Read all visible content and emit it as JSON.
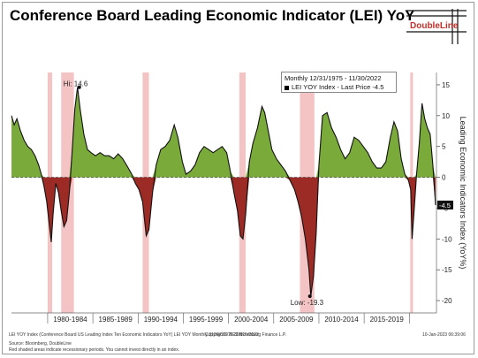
{
  "title": "Conference Board Leading Economic Indicator (LEI) YoY",
  "logo_text": "DoubleLine",
  "legend": {
    "line1": "Monthly 12/31/1975 - 11/30/2022",
    "line2": "LEI YOY Index - Last Price -4.5"
  },
  "footer": {
    "series_note": "LEI YOY Index (Conference Board US Leading Index Ten Economic Indicators YoY) LEI YOY  Monthly 31DEC1976-30NOV2022",
    "copyright": "Copyright© 2023 Bloomberg Finance L.P.",
    "date_stamp": "10-Jan-2023 06:39:06",
    "source": "Source: Bloomberg, DoubleLine",
    "disclaimer": "Red shaded areas indicate recessionary periods. You cannot invest directly in an index."
  },
  "chart_data": {
    "type": "area",
    "title": "Conference Board Leading Economic Indicator (LEI) YoY",
    "ylabel": "Leading Economic Indicators Index (YoY%)",
    "ylim": [
      -22,
      17
    ],
    "yticks": [
      15,
      10,
      5,
      0,
      -5,
      -10,
      -15,
      -20
    ],
    "ytick_labels": [
      "15",
      "10",
      "5",
      "0",
      "-5",
      "-10",
      "-15",
      "-20"
    ],
    "xlim": [
      1976.0,
      2023.0
    ],
    "x_period_labels": [
      "1980-1984",
      "1985-1989",
      "1990-1994",
      "1995-1999",
      "2000-2004",
      "2005-2009",
      "2010-2014",
      "2015-2019"
    ],
    "x_period_bounds": [
      1980,
      1985,
      1990,
      1995,
      2000,
      2005,
      2010,
      2015,
      2020
    ],
    "positive_color": "#7aab3a",
    "negative_color": "#9b2b24",
    "recession_color": "#f2b8b8",
    "recessions": [
      [
        1980.0,
        1980.5
      ],
      [
        1981.5,
        1982.9
      ],
      [
        1990.5,
        1991.2
      ],
      [
        2001.2,
        2001.9
      ],
      [
        2007.9,
        2009.5
      ],
      [
        2020.1,
        2020.4
      ]
    ],
    "annotations": [
      {
        "label": "Hi: 14.6",
        "x": 1983.5,
        "y": 14.6
      },
      {
        "label": "Low: -19.3",
        "x": 2009.0,
        "y": -19.3
      }
    ],
    "last_value_label": "-4.5",
    "series": [
      {
        "name": "LEI YOY Index",
        "x": [
          1976.0,
          1976.3,
          1976.6,
          1977.0,
          1977.4,
          1977.8,
          1978.2,
          1978.6,
          1979.0,
          1979.3,
          1979.6,
          1979.9,
          1980.2,
          1980.4,
          1980.6,
          1980.9,
          1981.2,
          1981.5,
          1981.8,
          1982.1,
          1982.4,
          1982.7,
          1983.0,
          1983.3,
          1983.6,
          1984.0,
          1984.4,
          1984.8,
          1985.3,
          1985.8,
          1986.3,
          1986.8,
          1987.3,
          1987.8,
          1988.3,
          1988.8,
          1989.3,
          1989.7,
          1990.1,
          1990.5,
          1990.9,
          1991.2,
          1991.6,
          1992.0,
          1992.5,
          1993.0,
          1993.5,
          1994.0,
          1994.4,
          1994.9,
          1995.3,
          1995.8,
          1996.3,
          1996.8,
          1997.3,
          1997.8,
          1998.3,
          1998.8,
          1999.3,
          1999.8,
          2000.2,
          2000.6,
          2001.0,
          2001.3,
          2001.6,
          2001.9,
          2002.3,
          2002.7,
          2003.2,
          2003.7,
          2004.0,
          2004.4,
          2004.8,
          2005.3,
          2005.8,
          2006.3,
          2006.8,
          2007.3,
          2007.7,
          2008.1,
          2008.5,
          2008.9,
          2009.1,
          2009.4,
          2009.7,
          2010.0,
          2010.4,
          2010.9,
          2011.4,
          2011.9,
          2012.4,
          2012.9,
          2013.4,
          2013.9,
          2014.4,
          2014.9,
          2015.4,
          2015.9,
          2016.4,
          2016.9,
          2017.4,
          2017.9,
          2018.3,
          2018.7,
          2019.1,
          2019.5,
          2019.9,
          2020.15,
          2020.3,
          2020.5,
          2020.8,
          2021.1,
          2021.4,
          2021.7,
          2022.0,
          2022.3,
          2022.6,
          2022.9
        ],
        "values": [
          10.0,
          8.5,
          9.5,
          7.5,
          6.0,
          5.0,
          4.5,
          3.5,
          2.0,
          0.5,
          -1.5,
          -4.0,
          -8.0,
          -10.5,
          -6.0,
          -1.0,
          -2.5,
          -5.5,
          -8.0,
          -7.0,
          -2.5,
          4.0,
          11.0,
          14.6,
          11.0,
          7.0,
          4.5,
          4.0,
          3.5,
          4.0,
          3.5,
          3.5,
          3.0,
          3.8,
          3.0,
          1.8,
          0.5,
          -1.0,
          -2.0,
          -4.0,
          -9.5,
          -8.5,
          -2.5,
          2.0,
          4.5,
          5.0,
          6.0,
          8.5,
          6.5,
          2.5,
          0.5,
          1.0,
          2.0,
          4.0,
          5.0,
          4.5,
          4.0,
          4.5,
          5.0,
          4.0,
          1.0,
          -2.5,
          -5.5,
          -9.5,
          -10.0,
          -6.0,
          2.5,
          5.5,
          8.0,
          11.5,
          10.5,
          7.5,
          4.5,
          3.0,
          2.0,
          1.0,
          -0.5,
          -2.0,
          -4.0,
          -6.5,
          -10.0,
          -15.0,
          -19.3,
          -16.0,
          -9.0,
          2.0,
          10.0,
          10.5,
          8.0,
          6.5,
          4.5,
          3.0,
          4.0,
          6.5,
          6.0,
          5.0,
          4.0,
          2.5,
          1.5,
          1.5,
          2.5,
          6.5,
          9.0,
          7.5,
          3.0,
          0.5,
          -0.5,
          -2.0,
          -10.0,
          -6.0,
          0.5,
          5.5,
          12.0,
          9.5,
          8.0,
          7.0,
          2.0,
          -4.5
        ]
      }
    ]
  }
}
